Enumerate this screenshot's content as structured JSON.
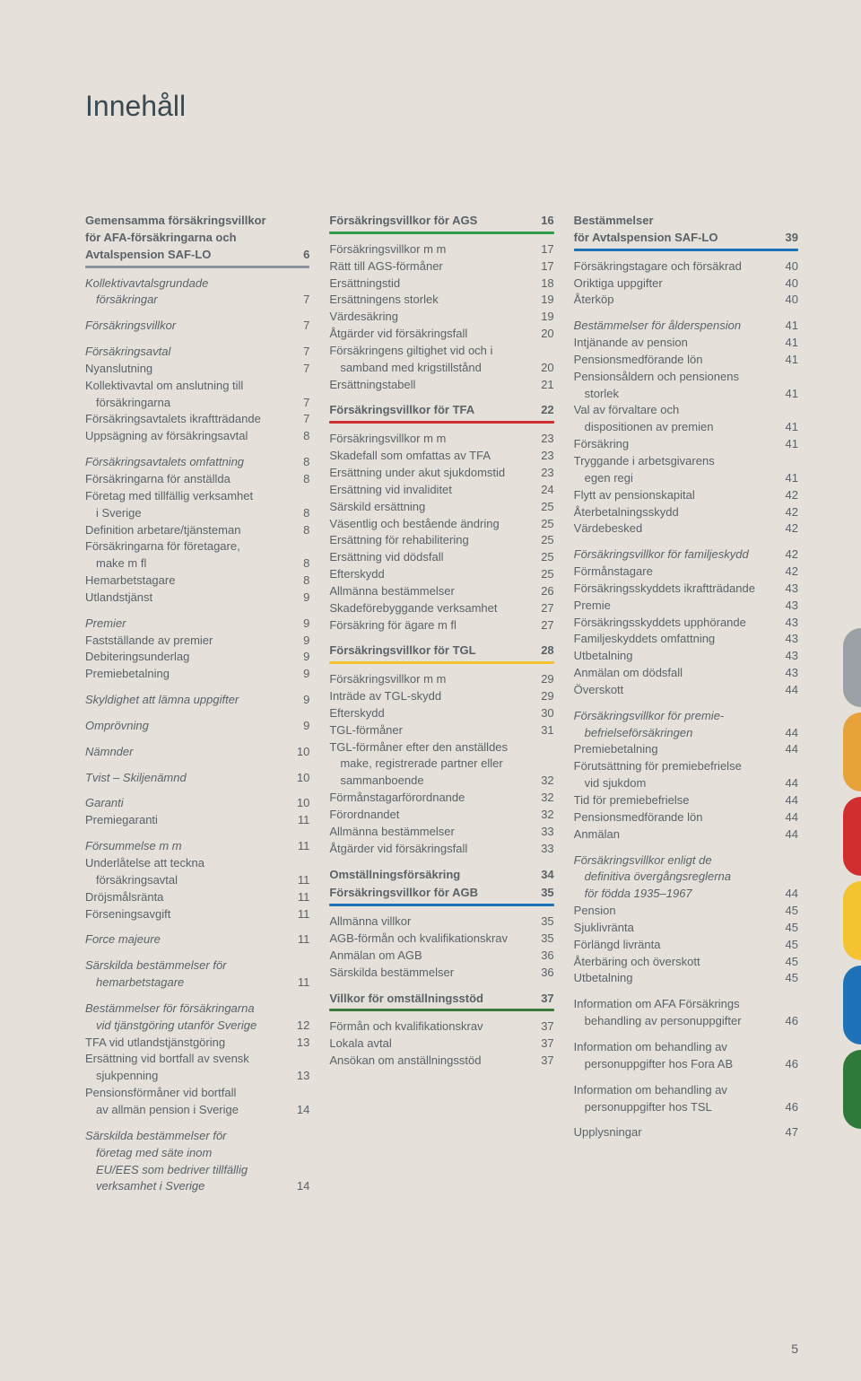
{
  "title": "Innehåll",
  "pageNumber": "5",
  "tabColors": [
    "#9aa0a6",
    "#e7a23a",
    "#d12f2f",
    "#f4c430",
    "#1e72b8",
    "#2e7a3a"
  ],
  "col1": {
    "s1": {
      "head_l1": "Gemensamma försäkringsvillkor",
      "head_l2": "för AFA-försäkringarna och",
      "head_l3": "Avtalspension SAF-LO",
      "head_pg": "6",
      "ruleColor": "#8a9399"
    },
    "g1": [
      {
        "label": "Kollektivavtalsgrundade",
        "italic": true
      },
      {
        "label": "försäkringar",
        "page": "7",
        "indent": true,
        "italic": true
      }
    ],
    "g2": [
      {
        "label": "Försäkringsvillkor",
        "page": "7",
        "italic": true
      }
    ],
    "g3": [
      {
        "label": "Försäkringsavtal",
        "page": "7",
        "italic": true
      },
      {
        "label": "Nyanslutning",
        "page": "7"
      },
      {
        "label": "Kollektivavtal om anslutning till"
      },
      {
        "label": "försäkringarna",
        "page": "7",
        "indent": true
      },
      {
        "label": "Försäkringsavtalets ikraftträdande",
        "page": "7"
      },
      {
        "label": "Uppsägning av försäkringsavtal",
        "page": "8"
      }
    ],
    "g4": [
      {
        "label": "Försäkringsavtalets omfattning",
        "page": "8",
        "italic": true
      },
      {
        "label": "Försäkringarna för anställda",
        "page": "8"
      },
      {
        "label": "Företag med tillfällig verksamhet"
      },
      {
        "label": "i Sverige",
        "page": "8",
        "indent": true
      },
      {
        "label": "Definition arbetare/tjänsteman",
        "page": "8"
      },
      {
        "label": "Försäkringarna för företagare,"
      },
      {
        "label": "make m fl",
        "page": "8",
        "indent": true
      },
      {
        "label": "Hemarbetstagare",
        "page": "8"
      },
      {
        "label": "Utlandstjänst",
        "page": "9"
      }
    ],
    "g5": [
      {
        "label": "Premier",
        "page": "9",
        "italic": true
      },
      {
        "label": "Fastställande av premier",
        "page": "9"
      },
      {
        "label": "Debiteringsunderlag",
        "page": "9"
      },
      {
        "label": "Premiebetalning",
        "page": "9"
      }
    ],
    "g6": [
      {
        "label": "Skyldighet att lämna uppgifter",
        "page": "9",
        "italic": true
      }
    ],
    "g7": [
      {
        "label": "Omprövning",
        "page": "9",
        "italic": true
      }
    ],
    "g8": [
      {
        "label": "Nämnder",
        "page": "10",
        "italic": true
      }
    ],
    "g9": [
      {
        "label": "Tvist – Skiljenämnd",
        "page": "10",
        "italic": true
      }
    ],
    "g10": [
      {
        "label": "Garanti",
        "page": "10",
        "italic": true
      },
      {
        "label": "Premiegaranti",
        "page": "11"
      }
    ],
    "g11": [
      {
        "label": "Försummelse m m",
        "page": "11",
        "italic": true
      },
      {
        "label": "Underlåtelse att teckna"
      },
      {
        "label": "försäkringsavtal",
        "page": "11",
        "indent": true
      },
      {
        "label": "Dröjsmålsränta",
        "page": "11"
      },
      {
        "label": "Förseningsavgift",
        "page": "11"
      }
    ],
    "g12": [
      {
        "label": "Force majeure",
        "page": "11",
        "italic": true
      }
    ],
    "g13": [
      {
        "label": "Särskilda bestämmelser för",
        "italic": true
      },
      {
        "label": "hemarbetstagare",
        "page": "11",
        "indent": true,
        "italic": true
      }
    ],
    "g14": [
      {
        "label": "Bestämmelser för försäkringarna",
        "italic": true
      },
      {
        "label": "vid tjänstgöring utanför Sverige",
        "page": "12",
        "indent": true,
        "italic": true
      },
      {
        "label": "TFA vid utlandstjänstgöring",
        "page": "13"
      },
      {
        "label": "Ersättning vid bortfall av svensk"
      },
      {
        "label": "sjukpenning",
        "page": "13",
        "indent": true
      },
      {
        "label": "Pensionsförmåner vid bortfall"
      },
      {
        "label": "av allmän pension i Sverige",
        "page": "14",
        "indent": true
      }
    ],
    "g15": [
      {
        "label": "Särskilda bestämmelser för",
        "italic": true
      },
      {
        "label": "företag med säte inom",
        "indent": true,
        "italic": true
      },
      {
        "label": "EU/EES som bedriver tillfällig",
        "indent": true,
        "italic": true
      },
      {
        "label": "verksamhet i Sverige",
        "page": "14",
        "indent": true,
        "italic": true
      }
    ]
  },
  "col2": {
    "s1": {
      "head": "Försäkringsvillkor för AGS",
      "page": "16",
      "ruleColor": "#2e9d4a"
    },
    "g1": [
      {
        "label": "Försäkringsvillkor m m",
        "page": "17"
      },
      {
        "label": "Rätt till AGS-förmåner",
        "page": "17"
      },
      {
        "label": "Ersättningstid",
        "page": "18"
      },
      {
        "label": "Ersättningens storlek",
        "page": "19"
      },
      {
        "label": "Värdesäkring",
        "page": "19"
      },
      {
        "label": "Åtgärder vid försäkringsfall",
        "page": "20"
      },
      {
        "label": "Försäkringens giltighet vid och i"
      },
      {
        "label": "samband med krigstillstånd",
        "page": "20",
        "indent": true
      },
      {
        "label": "Ersättningstabell",
        "page": "21"
      }
    ],
    "s2": {
      "head": "Försäkringsvillkor för TFA",
      "page": "22",
      "ruleColor": "#d12f2f"
    },
    "g2": [
      {
        "label": "Försäkringsvillkor m m",
        "page": "23"
      },
      {
        "label": "Skadefall som omfattas av TFA",
        "page": "23"
      },
      {
        "label": "Ersättning under akut sjukdomstid",
        "page": "23"
      },
      {
        "label": "Ersättning vid invaliditet",
        "page": "24"
      },
      {
        "label": "Särskild ersättning",
        "page": "25"
      },
      {
        "label": "Väsentlig och bestående ändring",
        "page": "25"
      },
      {
        "label": "Ersättning för rehabilitering",
        "page": "25"
      },
      {
        "label": "Ersättning vid dödsfall",
        "page": "25"
      },
      {
        "label": "Efterskydd",
        "page": "25"
      },
      {
        "label": "Allmänna bestämmelser",
        "page": "26"
      },
      {
        "label": "Skadeförebyggande verksamhet",
        "page": "27"
      },
      {
        "label": "Försäkring för ägare m fl",
        "page": "27"
      }
    ],
    "s3": {
      "head": "Försäkringsvillkor för TGL",
      "page": "28",
      "ruleColor": "#f4c430"
    },
    "g3": [
      {
        "label": "Försäkringsvillkor m m",
        "page": "29"
      },
      {
        "label": "Inträde av TGL-skydd",
        "page": "29"
      },
      {
        "label": "Efterskydd",
        "page": "30"
      },
      {
        "label": "TGL-förmåner",
        "page": "31"
      },
      {
        "label": "TGL-förmåner efter den anställdes"
      },
      {
        "label": "make, registrerade partner eller",
        "indent": true
      },
      {
        "label": "sammanboende",
        "page": "32",
        "indent": true
      },
      {
        "label": "Förmånstagarförordnande",
        "page": "32"
      },
      {
        "label": "Förordnandet",
        "page": "32"
      },
      {
        "label": "Allmänna bestämmelser",
        "page": "33"
      },
      {
        "label": "Åtgärder vid försäkringsfall",
        "page": "33"
      }
    ],
    "s4a": {
      "head": "Omställningsförsäkring",
      "page": "34"
    },
    "s4b": {
      "head": "Försäkringsvillkor för AGB",
      "page": "35",
      "ruleColor": "#1e72b8"
    },
    "g4": [
      {
        "label": "Allmänna villkor",
        "page": "35"
      },
      {
        "label": "AGB-förmån och kvalifikationskrav",
        "page": "35"
      },
      {
        "label": "Anmälan om AGB",
        "page": "36"
      },
      {
        "label": "Särskilda bestämmelser",
        "page": "36"
      }
    ],
    "s5": {
      "head": "Villkor för omställningsstöd",
      "page": "37",
      "ruleColor": "#3a7a3a"
    },
    "g5": [
      {
        "label": "Förmån och kvalifikationskrav",
        "page": "37"
      },
      {
        "label": "Lokala avtal",
        "page": "37"
      },
      {
        "label": "Ansökan om anställningsstöd",
        "page": "37"
      }
    ]
  },
  "col3": {
    "s1": {
      "head_l1": "Bestämmelser",
      "head_l2": "för Avtalspension SAF-LO",
      "head_pg": "39",
      "ruleColor": "#1e72b8"
    },
    "g1": [
      {
        "label": "Försäkringstagare och försäkrad",
        "page": "40"
      },
      {
        "label": "Oriktiga uppgifter",
        "page": "40"
      },
      {
        "label": "Återköp",
        "page": "40"
      }
    ],
    "g2": [
      {
        "label": "Bestämmelser för ålderspension",
        "page": "41",
        "italic": true
      },
      {
        "label": "Intjänande av pension",
        "page": "41"
      },
      {
        "label": "Pensionsmedförande lön",
        "page": "41"
      },
      {
        "label": "Pensionsåldern och pensionens"
      },
      {
        "label": "storlek",
        "page": "41",
        "indent": true
      },
      {
        "label": "Val av förvaltare och"
      },
      {
        "label": "dispositionen av premien",
        "page": "41",
        "indent": true
      },
      {
        "label": "Försäkring",
        "page": "41"
      },
      {
        "label": "Tryggande i arbetsgivarens"
      },
      {
        "label": "egen regi",
        "page": "41",
        "indent": true
      },
      {
        "label": "Flytt av pensionskapital",
        "page": "42"
      },
      {
        "label": "Återbetalningsskydd",
        "page": "42"
      },
      {
        "label": "Värdebesked",
        "page": "42"
      }
    ],
    "g3": [
      {
        "label": "Försäkringsvillkor för familjeskydd",
        "page": "42",
        "italic": true
      },
      {
        "label": "Förmånstagare",
        "page": "42"
      },
      {
        "label": "Försäkringsskyddets ikraftträdande",
        "page": "43"
      },
      {
        "label": "Premie",
        "page": "43"
      },
      {
        "label": "Försäkringsskyddets upphörande",
        "page": "43"
      },
      {
        "label": "Familjeskyddets omfattning",
        "page": "43"
      },
      {
        "label": "Utbetalning",
        "page": "43"
      },
      {
        "label": "Anmälan om dödsfall",
        "page": "43"
      },
      {
        "label": "Överskott",
        "page": "44"
      }
    ],
    "g4": [
      {
        "label": "Försäkringsvillkor för premie-",
        "italic": true
      },
      {
        "label": "befrielseförsäkringen",
        "page": "44",
        "indent": true,
        "italic": true
      },
      {
        "label": "Premiebetalning",
        "page": "44"
      },
      {
        "label": "Förutsättning för premiebefrielse"
      },
      {
        "label": "vid sjukdom",
        "page": "44",
        "indent": true
      },
      {
        "label": "Tid för premiebefrielse",
        "page": "44"
      },
      {
        "label": "Pensionsmedförande lön",
        "page": "44"
      },
      {
        "label": "Anmälan",
        "page": "44"
      }
    ],
    "g5": [
      {
        "label": "Försäkringsvillkor enligt de",
        "italic": true
      },
      {
        "label": "definitiva övergångsreglerna",
        "indent": true,
        "italic": true
      },
      {
        "label": "för födda 1935–1967",
        "page": "44",
        "indent": true,
        "italic": true
      },
      {
        "label": "Pension",
        "page": "45"
      },
      {
        "label": "Sjuklivränta",
        "page": "45"
      },
      {
        "label": "Förlängd livränta",
        "page": "45"
      },
      {
        "label": "Återbäring och överskott",
        "page": "45"
      },
      {
        "label": "Utbetalning",
        "page": "45"
      }
    ],
    "g6": [
      {
        "label": "Information om AFA Försäkrings"
      },
      {
        "label": "behandling av personuppgifter",
        "page": "46",
        "indent": true
      }
    ],
    "g7": [
      {
        "label": "Information om behandling av"
      },
      {
        "label": "personuppgifter hos Fora AB",
        "page": "46",
        "indent": true
      }
    ],
    "g8": [
      {
        "label": "Information om behandling av"
      },
      {
        "label": "personuppgifter hos TSL",
        "page": "46",
        "indent": true
      }
    ],
    "g9": [
      {
        "label": "Upplysningar",
        "page": "47"
      }
    ]
  }
}
